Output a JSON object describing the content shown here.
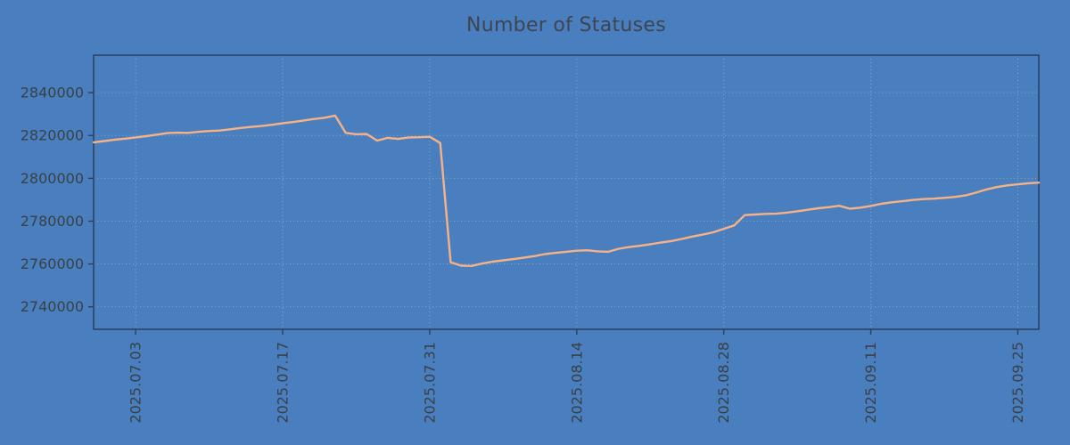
{
  "page": {
    "background": "#4a7fbf"
  },
  "chart_data": {
    "type": "line",
    "title": "Number of Statuses",
    "xlabel": "",
    "ylabel": "",
    "grid": "dotted",
    "legend": "none",
    "xlim": [
      "2025-06-29",
      "2025-09-27"
    ],
    "ylim": [
      2729500,
      2857500
    ],
    "yticks": [
      2740000,
      2760000,
      2780000,
      2800000,
      2820000,
      2840000
    ],
    "xticks": [
      "2025.07.03",
      "2025.07.17",
      "2025.07.31",
      "2025.08.14",
      "2025.08.28",
      "2025.09.11",
      "2025.09.25"
    ],
    "colors": {
      "background": "#4a7fbf",
      "frame": "#2b3f5c",
      "grid": "#a8b6c9",
      "tick_label": "#3a4046",
      "title": "#3e4450",
      "line": "#f6b286"
    },
    "series": [
      {
        "name": "statuses",
        "color": "#f6b286",
        "x": [
          "2025-06-29",
          "2025-06-30",
          "2025-07-01",
          "2025-07-02",
          "2025-07-03",
          "2025-07-04",
          "2025-07-05",
          "2025-07-06",
          "2025-07-07",
          "2025-07-08",
          "2025-07-09",
          "2025-07-10",
          "2025-07-11",
          "2025-07-12",
          "2025-07-13",
          "2025-07-14",
          "2025-07-15",
          "2025-07-16",
          "2025-07-17",
          "2025-07-18",
          "2025-07-19",
          "2025-07-20",
          "2025-07-21",
          "2025-07-22",
          "2025-07-23",
          "2025-07-24",
          "2025-07-25",
          "2025-07-26",
          "2025-07-27",
          "2025-07-28",
          "2025-07-29",
          "2025-07-30",
          "2025-07-31",
          "2025-08-01",
          "2025-08-02",
          "2025-08-03",
          "2025-08-04",
          "2025-08-05",
          "2025-08-06",
          "2025-08-07",
          "2025-08-08",
          "2025-08-09",
          "2025-08-10",
          "2025-08-11",
          "2025-08-12",
          "2025-08-13",
          "2025-08-14",
          "2025-08-15",
          "2025-08-16",
          "2025-08-17",
          "2025-08-18",
          "2025-08-19",
          "2025-08-20",
          "2025-08-21",
          "2025-08-22",
          "2025-08-23",
          "2025-08-24",
          "2025-08-25",
          "2025-08-26",
          "2025-08-27",
          "2025-08-28",
          "2025-08-29",
          "2025-08-30",
          "2025-08-31",
          "2025-09-01",
          "2025-09-02",
          "2025-09-03",
          "2025-09-04",
          "2025-09-05",
          "2025-09-06",
          "2025-09-07",
          "2025-09-08",
          "2025-09-09",
          "2025-09-10",
          "2025-09-11",
          "2025-09-12",
          "2025-09-13",
          "2025-09-14",
          "2025-09-15",
          "2025-09-16",
          "2025-09-17",
          "2025-09-18",
          "2025-09-19",
          "2025-09-20",
          "2025-09-21",
          "2025-09-22",
          "2025-09-23",
          "2025-09-24",
          "2025-09-25",
          "2025-09-26",
          "2025-09-27"
        ],
        "y": [
          2816800,
          2817400,
          2818000,
          2818500,
          2819100,
          2819700,
          2820400,
          2821100,
          2821300,
          2821200,
          2821700,
          2822100,
          2822300,
          2822900,
          2823500,
          2824000,
          2824400,
          2825000,
          2825700,
          2826300,
          2827000,
          2827700,
          2828300,
          2829300,
          2821200,
          2820600,
          2820700,
          2817600,
          2818900,
          2818400,
          2819100,
          2819200,
          2819400,
          2816500,
          2760800,
          2759200,
          2759100,
          2760200,
          2761100,
          2761700,
          2762300,
          2763000,
          2763700,
          2764600,
          2765200,
          2765700,
          2766200,
          2766400,
          2765900,
          2765700,
          2767100,
          2767900,
          2768500,
          2769200,
          2770000,
          2770700,
          2771700,
          2772800,
          2773700,
          2774800,
          2776400,
          2778000,
          2782800,
          2783100,
          2783400,
          2783500,
          2784000,
          2784600,
          2785300,
          2786000,
          2786500,
          2787200,
          2785800,
          2786300,
          2787100,
          2788100,
          2788800,
          2789300,
          2789900,
          2790300,
          2790500,
          2790900,
          2791300,
          2792000,
          2793300,
          2794800,
          2795900,
          2796700,
          2797200,
          2797700,
          2798000
        ]
      }
    ]
  }
}
